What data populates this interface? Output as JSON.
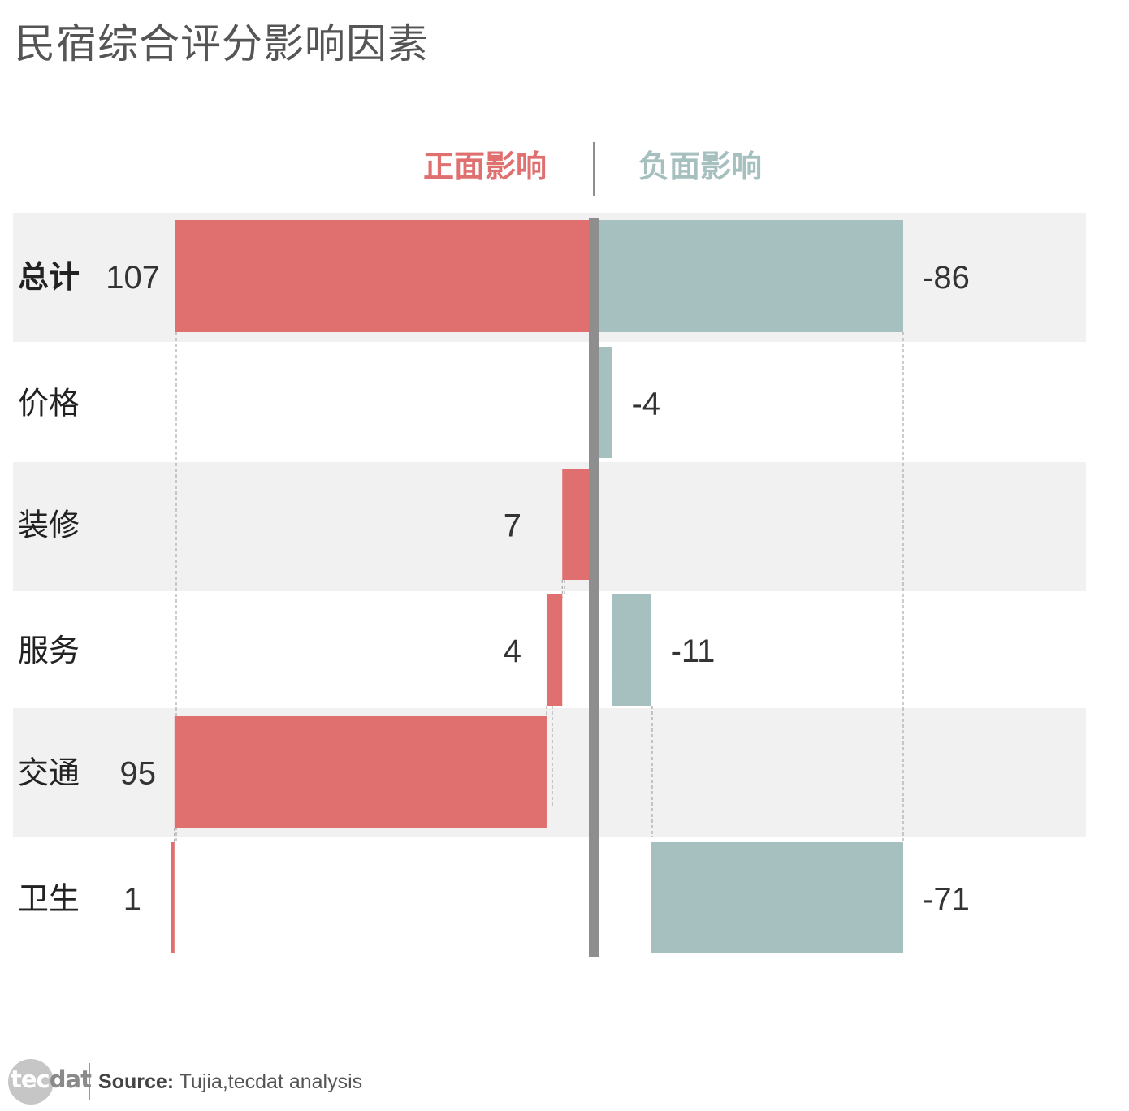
{
  "title": "民宿综合评分影响因素",
  "chart_data": {
    "type": "bar",
    "subtype": "diverging-waterfall",
    "legend": [
      {
        "name": "正面影响",
        "color": "#e07070"
      },
      {
        "name": "负面影响",
        "color": "#a6bfbf"
      }
    ],
    "categories": [
      "总计",
      "价格",
      "装修",
      "服务",
      "交通",
      "卫生"
    ],
    "series": [
      {
        "name": "正面影响",
        "values": [
          107,
          0,
          7,
          4,
          95,
          1
        ]
      },
      {
        "name": "负面影响",
        "values": [
          -86,
          -4,
          0,
          -11,
          0,
          -71
        ]
      }
    ],
    "value_labels": {
      "positive": [
        "107",
        "",
        "7",
        "4",
        "95",
        "1"
      ],
      "negative": [
        "-86",
        "-4",
        "",
        "-11",
        "",
        "-71"
      ]
    },
    "legend_placement": "top-center",
    "row_banding": true
  },
  "footer": {
    "logo": {
      "part1": "tec",
      "part2": "dat"
    },
    "source_label": "Source:",
    "source_text": " Tujia,tecdat analysis"
  }
}
